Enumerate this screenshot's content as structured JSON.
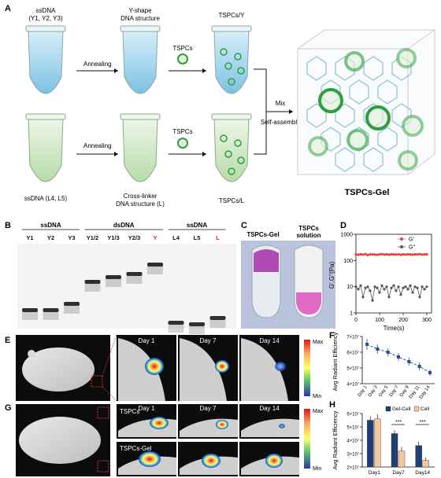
{
  "panels": {
    "A": {
      "letter": "A",
      "ss_top": "ssDNA\n(Y1, Y2, Y3)",
      "ss_top_1": "ssDNA",
      "ss_top_2": "(Y1, Y2, Y3)",
      "annealing_top": "Annealing",
      "y_shape_1": "Y-shape",
      "y_shape_2": "DNA structure",
      "tspcs_top": "TSPCs",
      "tspcs_y": "TSPCs/Y",
      "ss_bottom": "ssDNA (L4, L5)",
      "annealing_bottom": "Annealing",
      "crosslinker_1": "Cross-linker",
      "crosslinker_2": "DNA structure (L)",
      "tspcs_bottom": "TSPCs",
      "tspcs_l": "TSPCs/L",
      "mix": "Mix",
      "self_assembly": "Self-assembly",
      "gel_title": "TSPCs-Gel"
    },
    "B": {
      "letter": "B",
      "groups": [
        "ssDNA",
        "dsDNA",
        "ssDNA"
      ],
      "lanes": [
        "Y1",
        "Y2",
        "Y3",
        "Y1/2",
        "Y1/3",
        "Y2/3",
        "Y",
        "L4",
        "L5",
        "L"
      ],
      "red_lanes": [
        "Y",
        "L"
      ]
    },
    "C": {
      "letter": "C",
      "label_gel": "TSPCs-Gel",
      "label_solution_1": "TSPCs",
      "label_solution_2": "solution"
    },
    "D": {
      "letter": "D",
      "ylabel": "G',G''(Pa)",
      "xlabel": "Time(s)"
    },
    "E": {
      "letter": "E",
      "days": [
        "Day 1",
        "Day 7",
        "Day 14"
      ],
      "scale_max": "Max",
      "scale_min": "Min"
    },
    "F": {
      "letter": "F",
      "ylabel": "Avg Radiant Efficiency"
    },
    "G": {
      "letter": "G",
      "days": [
        "Day 1",
        "Day 7",
        "Day 14"
      ],
      "row_top": "TSPCs",
      "row_bottom": "TSPCs-Gel",
      "scale_max": "Max",
      "scale_min": "Min"
    },
    "H": {
      "letter": "H",
      "ylabel": "Avg Radiant Efficiency",
      "sig": "***"
    }
  },
  "colors": {
    "green_ring": "#2e9e3e",
    "tube_blue": "#a9d8ee",
    "tube_green": "#cfe8c5",
    "g_prime": "#e8413c",
    "g_double": "#555555",
    "bar_gel": "#1f3f73",
    "bar_cell": "#f4c7a1",
    "line_blue": "#2a4f8f",
    "red_label": "#e02020"
  },
  "chart_data": [
    {
      "id": "D",
      "type": "scatter",
      "xlabel": "Time(s)",
      "ylabel": "G',G''(Pa)",
      "xlim": [
        0,
        320
      ],
      "ylim": [
        1,
        1000
      ],
      "yscale": "log",
      "x_ticks": [
        0,
        100,
        200,
        300
      ],
      "y_ticks": [
        1,
        10,
        100,
        1000
      ],
      "series": [
        {
          "name": "G'",
          "color": "#e8413c",
          "x": [
            0,
            10,
            20,
            30,
            40,
            50,
            60,
            70,
            80,
            90,
            100,
            110,
            120,
            130,
            140,
            150,
            160,
            170,
            180,
            190,
            200,
            210,
            220,
            230,
            240,
            250,
            260,
            270,
            280,
            290,
            300
          ],
          "y": [
            170,
            165,
            172,
            168,
            175,
            160,
            170,
            172,
            168,
            165,
            170,
            175,
            168,
            170,
            166,
            172,
            170,
            168,
            174,
            165,
            170,
            168,
            172,
            170,
            166,
            172,
            170,
            175,
            168,
            170,
            172
          ]
        },
        {
          "name": "G''",
          "color": "#555555",
          "x": [
            0,
            10,
            20,
            30,
            40,
            50,
            60,
            70,
            80,
            90,
            100,
            110,
            120,
            130,
            140,
            150,
            160,
            170,
            180,
            190,
            200,
            210,
            220,
            230,
            240,
            250,
            260,
            270,
            280,
            290,
            300
          ],
          "y": [
            10,
            8,
            11,
            4,
            9,
            10,
            7,
            3,
            10,
            9,
            6,
            11,
            8,
            10,
            4,
            9,
            11,
            7,
            10,
            5,
            9,
            10,
            8,
            11,
            6,
            10,
            9,
            4,
            10,
            8,
            10
          ]
        }
      ]
    },
    {
      "id": "F",
      "type": "line",
      "categories": [
        "Day 1",
        "Day 3",
        "Day 5",
        "Day 7",
        "Day 9",
        "Day 11",
        "Day 14"
      ],
      "values": [
        65000000.0,
        62000000.0,
        60000000.0,
        57000000.0,
        54000000.0,
        51000000.0,
        47000000.0
      ],
      "errors": [
        3500000.0,
        3000000.0,
        2500000.0,
        2500000.0,
        2500000.0,
        2500000.0,
        2000000.0
      ],
      "ylim": [
        40000000.0,
        70000000.0
      ],
      "y_ticks": [
        "4×10⁷",
        "5×10⁷",
        "6×10⁷",
        "7×10⁷"
      ],
      "ylabel": "Avg Radiant Efficiency"
    },
    {
      "id": "H",
      "type": "bar",
      "categories": [
        "Day1",
        "Day7",
        "Day14"
      ],
      "series": [
        {
          "name": "Gel-Cell",
          "values": [
            55000000.0,
            45000000.0,
            36000000.0
          ],
          "errors": [
            3000000.0,
            2500000.0,
            3000000.0
          ]
        },
        {
          "name": "Cell",
          "values": [
            56000000.0,
            32000000.0,
            25000000.0
          ],
          "errors": [
            3500000.0,
            3000000.0,
            2000000.0
          ]
        }
      ],
      "ylim": [
        20000000.0,
        60000000.0
      ],
      "y_ticks": [
        "2×10⁷",
        "3×10⁷",
        "4×10⁷",
        "5×10⁷",
        "6×10⁷"
      ],
      "ylabel": "Avg Radiant Efficiency",
      "legend": "top-right",
      "significance": [
        "",
        "***",
        "***"
      ]
    }
  ]
}
